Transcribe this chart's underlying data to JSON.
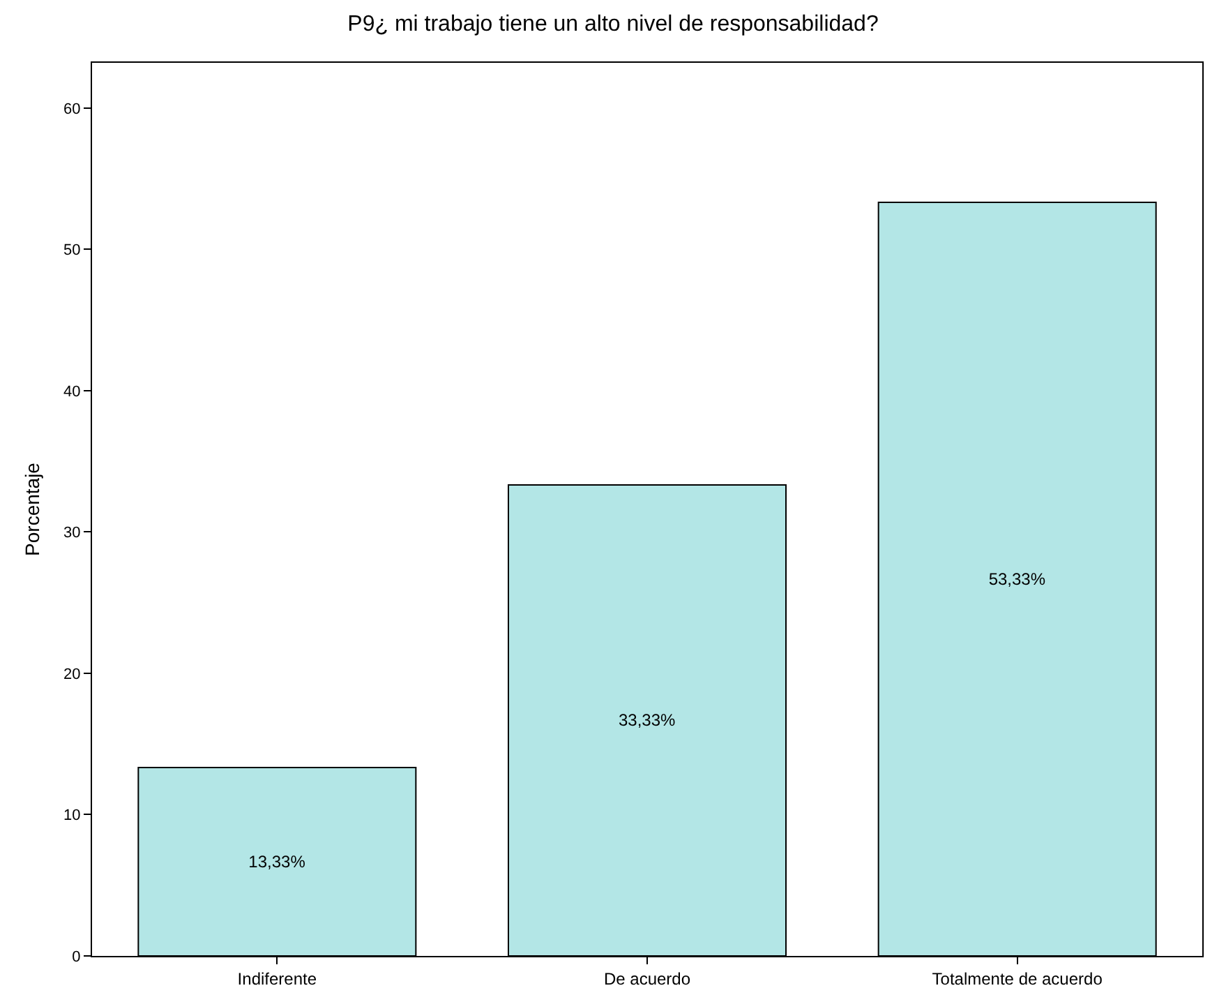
{
  "chart_data": {
    "type": "bar",
    "title": "P9¿ mi trabajo tiene un alto nivel de responsabilidad?",
    "ylabel": "Porcentaje",
    "categories": [
      "Indiferente",
      "De acuerdo",
      "Totalmente de acuerdo"
    ],
    "values": [
      13.33,
      33.33,
      53.33
    ],
    "value_labels": [
      "13,33%",
      "33,33%",
      "53,33%"
    ],
    "color": "#b3e6e6",
    "ylim": [
      0,
      63.2
    ],
    "yticks": [
      0,
      10,
      20,
      30,
      40,
      50,
      60
    ],
    "grid": false,
    "legend": false
  }
}
